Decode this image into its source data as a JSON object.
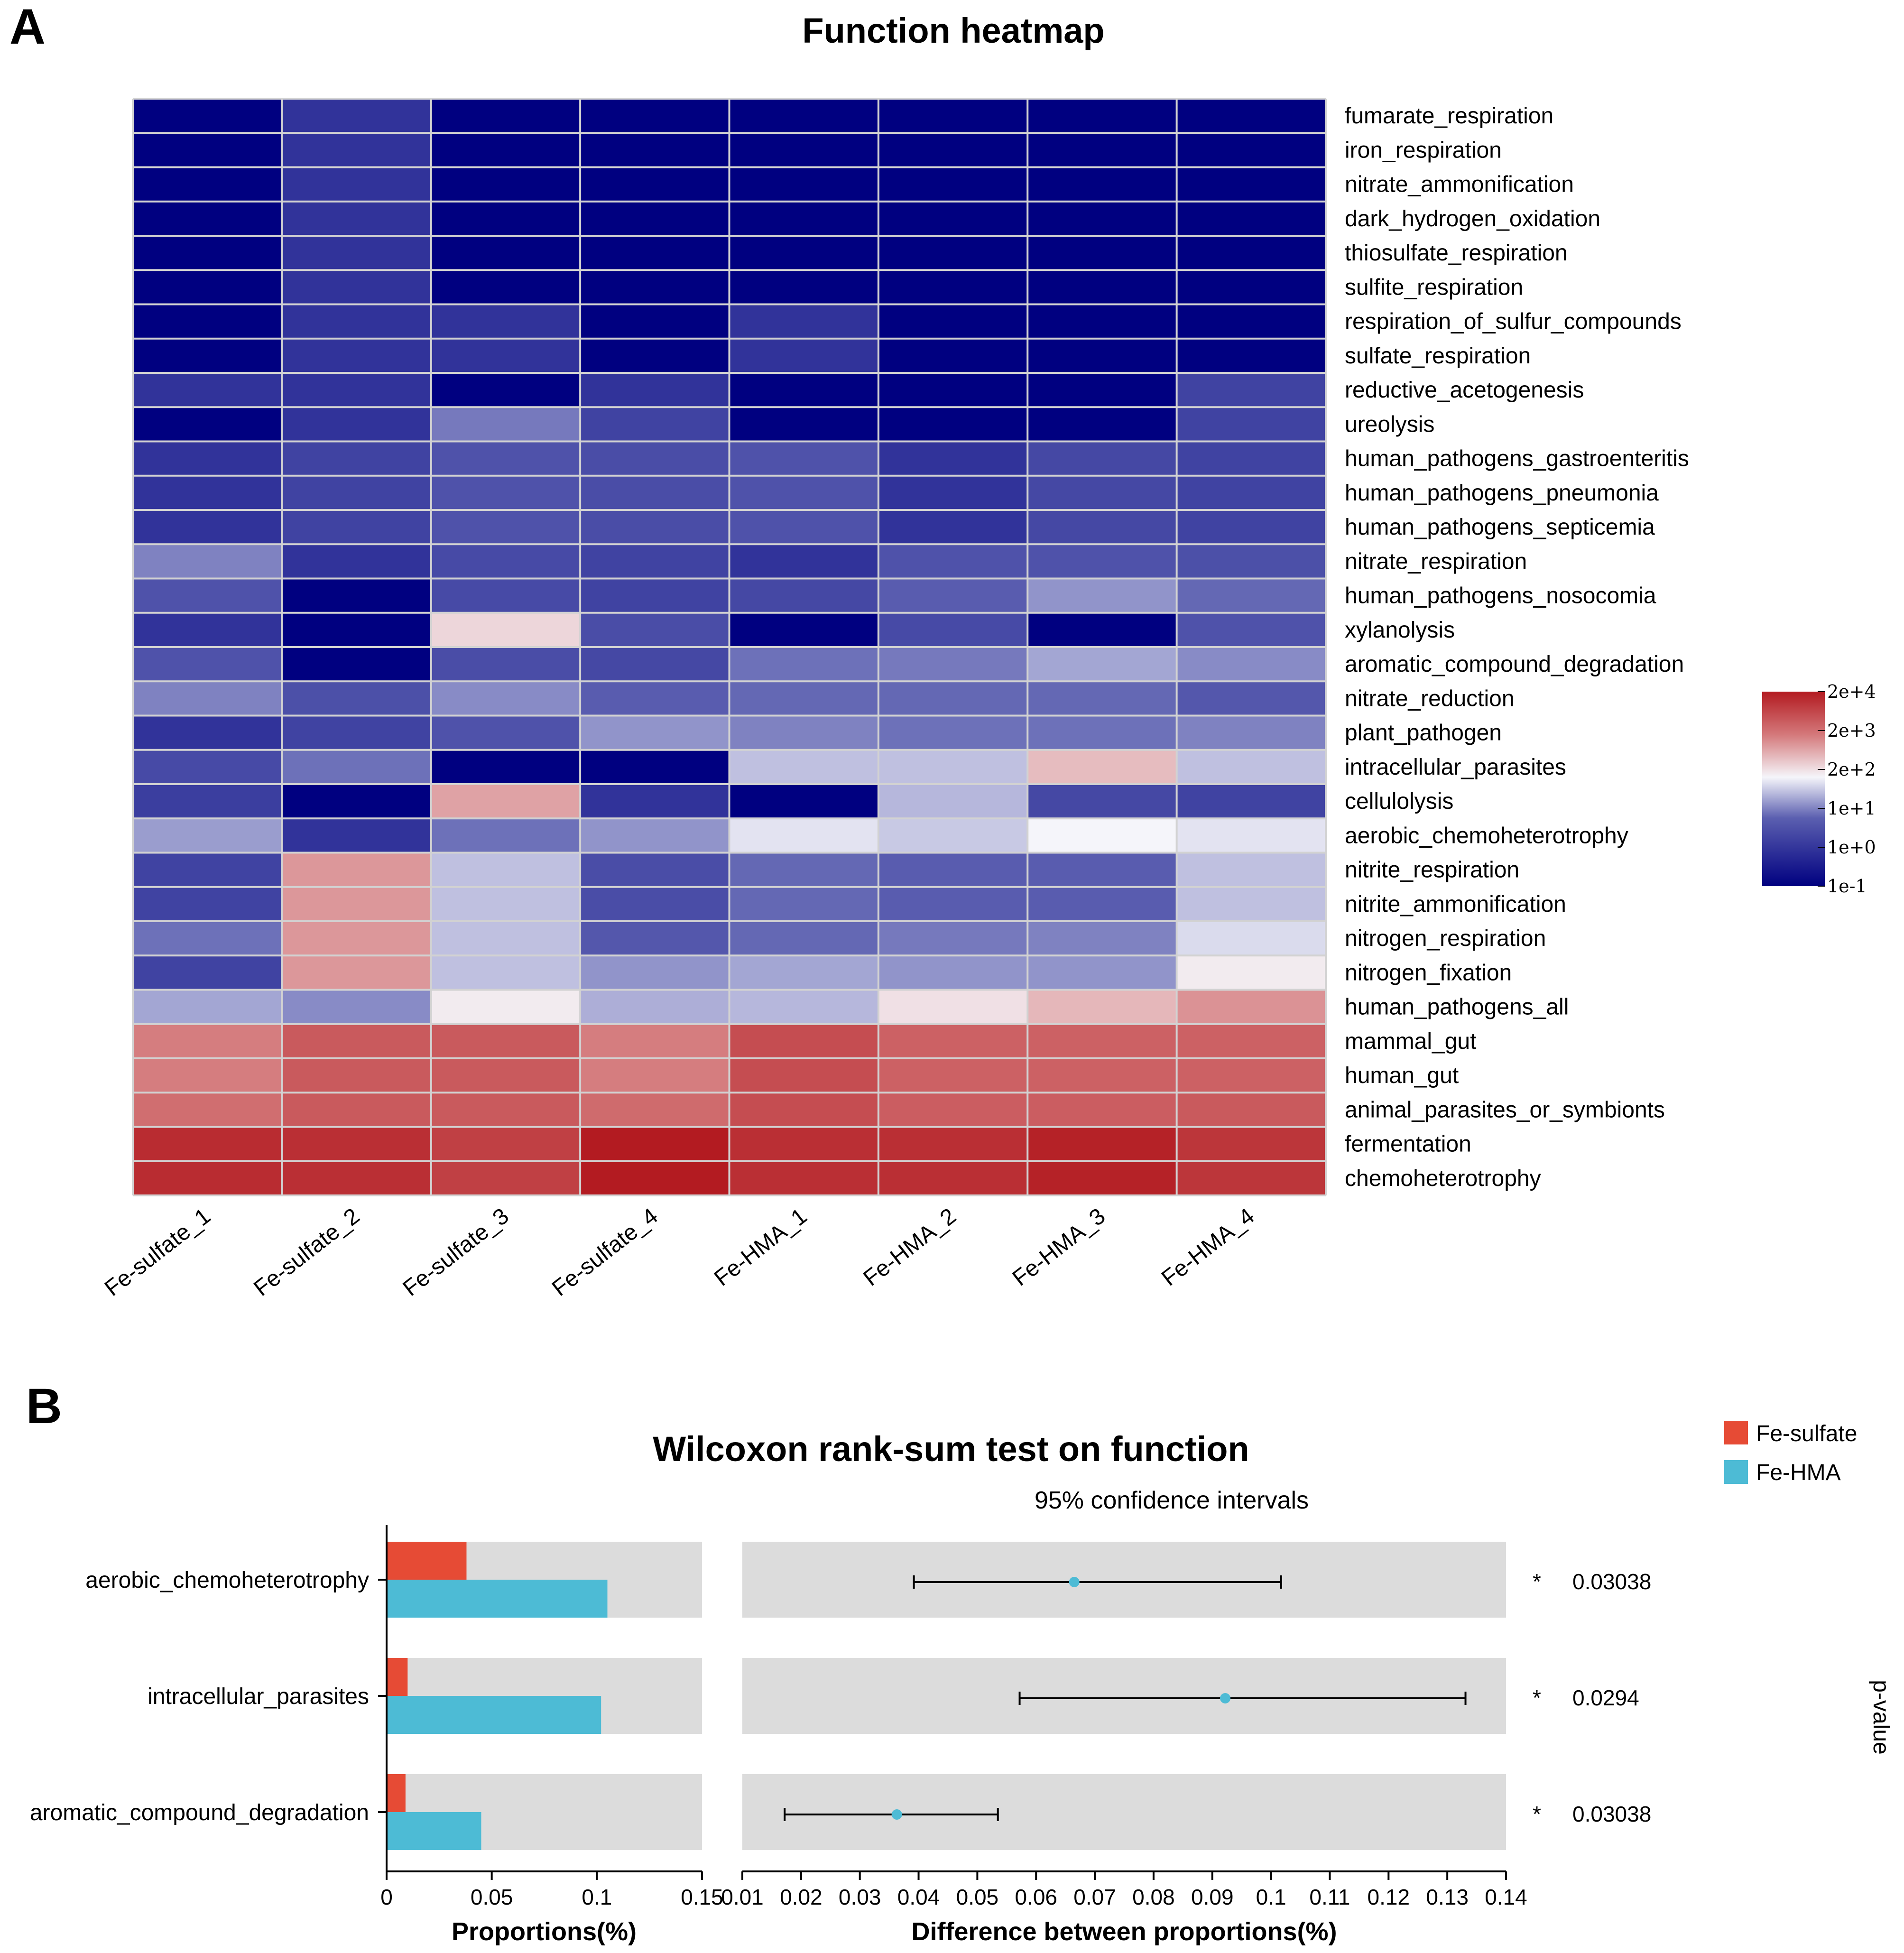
{
  "panel_a": {
    "letter": "A",
    "colorbar_labels": [
      "2e+4",
      "2e+3",
      "2e+2",
      "1e+1",
      "1e+0",
      "1e-1"
    ],
    "colorbar_colors": [
      "#b31b21",
      "#d4787a",
      "#f5f5fa",
      "#5b5fb0",
      "#000080"
    ]
  },
  "panel_b": {
    "letter": "B",
    "legend": [
      {
        "name": "Fe-sulfate",
        "color": "#e64b35"
      },
      {
        "name": "Fe-HMA",
        "color": "#4dbbd5"
      }
    ],
    "significance_marks": [
      "*",
      "*",
      "*"
    ],
    "p_values": [
      "0.03038",
      "0.0294",
      "0.03038"
    ],
    "p_value_label": "p-value"
  },
  "chart_data": [
    {
      "type": "heatmap",
      "title": "Function heatmap",
      "scale": "log10",
      "value_range": [
        -1,
        4.3
      ],
      "columns": [
        "Fe-sulfate_1",
        "Fe-sulfate_2",
        "Fe-sulfate_3",
        "Fe-sulfate_4",
        "Fe-HMA_1",
        "Fe-HMA_2",
        "Fe-HMA_3",
        "Fe-HMA_4"
      ],
      "rows": [
        "fumarate_respiration",
        "iron_respiration",
        "nitrate_ammonification",
        "dark_hydrogen_oxidation",
        "thiosulfate_respiration",
        "sulfite_respiration",
        "respiration_of_sulfur_compounds",
        "sulfate_respiration",
        "reductive_acetogenesis",
        "ureolysis",
        "human_pathogens_gastroenteritis",
        "human_pathogens_pneumonia",
        "human_pathogens_septicemia",
        "nitrate_respiration",
        "human_pathogens_nosocomia",
        "xylanolysis",
        "aromatic_compound_degradation",
        "nitrate_reduction",
        "plant_pathogen",
        "intracellular_parasites",
        "cellulolysis",
        "aerobic_chemoheterotrophy",
        "nitrite_respiration",
        "nitrite_ammonification",
        "nitrogen_respiration",
        "nitrogen_fixation",
        "human_pathogens_all",
        "mammal_gut",
        "human_gut",
        "animal_parasites_or_symbionts",
        "fermentation",
        "chemoheterotrophy"
      ],
      "values": [
        [
          -1,
          0,
          -1,
          -1,
          -1,
          -1,
          -1,
          -1
        ],
        [
          -1,
          0,
          -1,
          -1,
          -1,
          -1,
          -1,
          -1
        ],
        [
          -1,
          0,
          -1,
          -1,
          -1,
          -1,
          -1,
          -1
        ],
        [
          -1,
          0,
          -1,
          -1,
          -1,
          -1,
          -1,
          -1
        ],
        [
          -1,
          0,
          -1,
          -1,
          -1,
          -1,
          -1,
          -1
        ],
        [
          -1,
          0,
          -1,
          -1,
          -1,
          -1,
          -1,
          -1
        ],
        [
          -1,
          0,
          0,
          -1,
          0,
          -1,
          -1,
          -1
        ],
        [
          -1,
          0,
          0,
          -1,
          0,
          -1,
          -1,
          -1
        ],
        [
          0,
          0,
          -1,
          0,
          -1,
          -1,
          -1,
          0.3
        ],
        [
          -1,
          0,
          1,
          0.3,
          -1,
          -1,
          -1,
          0.3
        ],
        [
          0,
          0.3,
          0.6,
          0.5,
          0.6,
          0,
          0.4,
          0.3
        ],
        [
          0,
          0.3,
          0.6,
          0.5,
          0.6,
          0,
          0.4,
          0.3
        ],
        [
          0,
          0.3,
          0.6,
          0.5,
          0.6,
          0,
          0.4,
          0.3
        ],
        [
          1.05,
          0,
          0.45,
          0.3,
          0,
          0.6,
          0.6,
          0.55
        ],
        [
          0.6,
          -1,
          0.45,
          0.3,
          0.4,
          0.8,
          1.15,
          0.9
        ],
        [
          0,
          -1,
          2,
          0.5,
          -1,
          0.45,
          -1,
          0.6
        ],
        [
          0.6,
          -1,
          0.5,
          0.4,
          0.95,
          1.0,
          1.25,
          1.1
        ],
        [
          1.05,
          0.55,
          1.1,
          0.8,
          0.9,
          0.9,
          0.9,
          0.7
        ],
        [
          0,
          0.3,
          0.6,
          1.15,
          1.05,
          0.95,
          0.95,
          1.05
        ],
        [
          0.45,
          0.95,
          -1,
          -1,
          1.4,
          1.4,
          2.25,
          1.4
        ],
        [
          0.2,
          -1,
          2.5,
          0,
          -1,
          1.35,
          0.4,
          0.3
        ],
        [
          1.2,
          0,
          0.95,
          1.15,
          1.6,
          1.45,
          1.7,
          1.6
        ],
        [
          0.3,
          2.6,
          1.4,
          0.5,
          0.9,
          0.8,
          0.8,
          1.4
        ],
        [
          0.3,
          2.6,
          1.4,
          0.5,
          0.9,
          0.8,
          0.8,
          1.4
        ],
        [
          0.95,
          2.6,
          1.4,
          0.7,
          0.9,
          1.0,
          1.05,
          1.55
        ],
        [
          0.3,
          2.6,
          1.4,
          1.15,
          1.25,
          1.15,
          1.15,
          1.8
        ],
        [
          1.25,
          1.1,
          1.8,
          1.3,
          1.35,
          1.9,
          2.3,
          2.65
        ],
        [
          2.85,
          3.35,
          3.35,
          2.85,
          3.55,
          3.25,
          3.25,
          3.25
        ],
        [
          2.85,
          3.35,
          3.35,
          2.85,
          3.55,
          3.25,
          3.25,
          3.25
        ],
        [
          3.05,
          3.35,
          3.35,
          3.1,
          3.55,
          3.3,
          3.3,
          3.35
        ],
        [
          4.05,
          4.0,
          3.75,
          4.3,
          4.0,
          4.0,
          4.2,
          3.9
        ],
        [
          4.05,
          4.0,
          3.75,
          4.3,
          4.0,
          4.0,
          4.2,
          3.9
        ]
      ],
      "colorbar_ticks": [
        "2e+4",
        "2e+3",
        "2e+2",
        "1e+1",
        "1e+0",
        "1e-1"
      ]
    },
    {
      "type": "bar",
      "title": "Wilcoxon rank-sum test on function",
      "orientation": "horizontal",
      "categories": [
        "aerobic_chemoheterotrophy",
        "intracellular_parasites",
        "aromatic_compound_degradation"
      ],
      "series": [
        {
          "name": "Fe-sulfate",
          "values": [
            0.038,
            0.01,
            0.009
          ]
        },
        {
          "name": "Fe-HMA",
          "values": [
            0.105,
            0.102,
            0.045
          ]
        }
      ],
      "xlabel": "Proportions(%)",
      "xlim": [
        0,
        0.15
      ],
      "xticks": [
        0,
        0.05,
        0.1,
        0.15
      ],
      "xtick_labels": [
        "0",
        "0.05",
        "0.1",
        "0.15"
      ]
    },
    {
      "type": "scatter",
      "subtitle": "95% confidence intervals",
      "categories": [
        "aerobic_chemoheterotrophy",
        "intracellular_parasites",
        "aromatic_compound_degradation"
      ],
      "estimates": [
        0.0665,
        0.0922,
        0.0363
      ],
      "ci_lower": [
        0.0392,
        0.0572,
        0.0172
      ],
      "ci_upper": [
        0.1017,
        0.1331,
        0.0535
      ],
      "xlabel": "Difference between proportions(%)",
      "xlim": [
        0.01,
        0.14
      ],
      "xticks": [
        0.01,
        0.02,
        0.03,
        0.04,
        0.05,
        0.06,
        0.07,
        0.08,
        0.09,
        0.1,
        0.11,
        0.12,
        0.13,
        0.14
      ],
      "xtick_labels": [
        "0.01",
        "0.02",
        "0.03",
        "0.04",
        "0.05",
        "0.06",
        "0.07",
        "0.08",
        "0.09",
        "0.1",
        "0.11",
        "0.12",
        "0.13",
        "0.14"
      ],
      "point_color": "#4dbbd5"
    }
  ]
}
